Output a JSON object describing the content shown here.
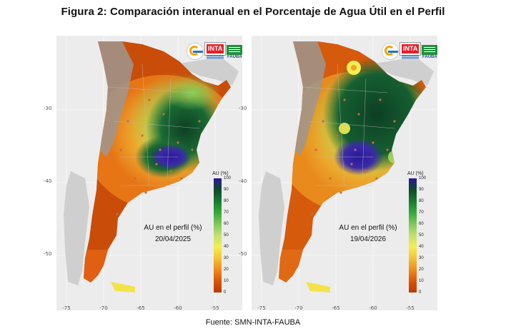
{
  "figure": {
    "title": "Figura 2: Comparación interanual en el Porcentaje de Agua Útil en el Perfil",
    "source": "Fuente: SMN-INTA-FAUBA"
  },
  "axes": {
    "y_ticks": [
      "-30",
      "-40",
      "-50"
    ],
    "x_ticks": [
      "-75",
      "-70",
      "-65",
      "-60",
      "-55"
    ]
  },
  "legend": {
    "title": "AU (%)",
    "labels": [
      "100",
      "90",
      "80",
      "70",
      "60",
      "50",
      "40",
      "30",
      "20",
      "10",
      "0"
    ]
  },
  "logos": {
    "inta_text": "INTA",
    "fauba_text": "FAUBA"
  },
  "panels": [
    {
      "caption": "AU en el perfil (%)",
      "date": "20/04/2025"
    },
    {
      "caption": "AU en el perfil (%)",
      "date": "19/04/2026"
    }
  ],
  "colors": {
    "very_dry": "#c94d08",
    "dry": "#e77516",
    "medium": "#f3e34a",
    "wet": "#5fbe4f",
    "very_wet": "#0f4a2a",
    "saturated": "#2c1a96",
    "no_data": "#9d978f",
    "neighbors": "#cfcfcf",
    "background": "#ececec"
  }
}
